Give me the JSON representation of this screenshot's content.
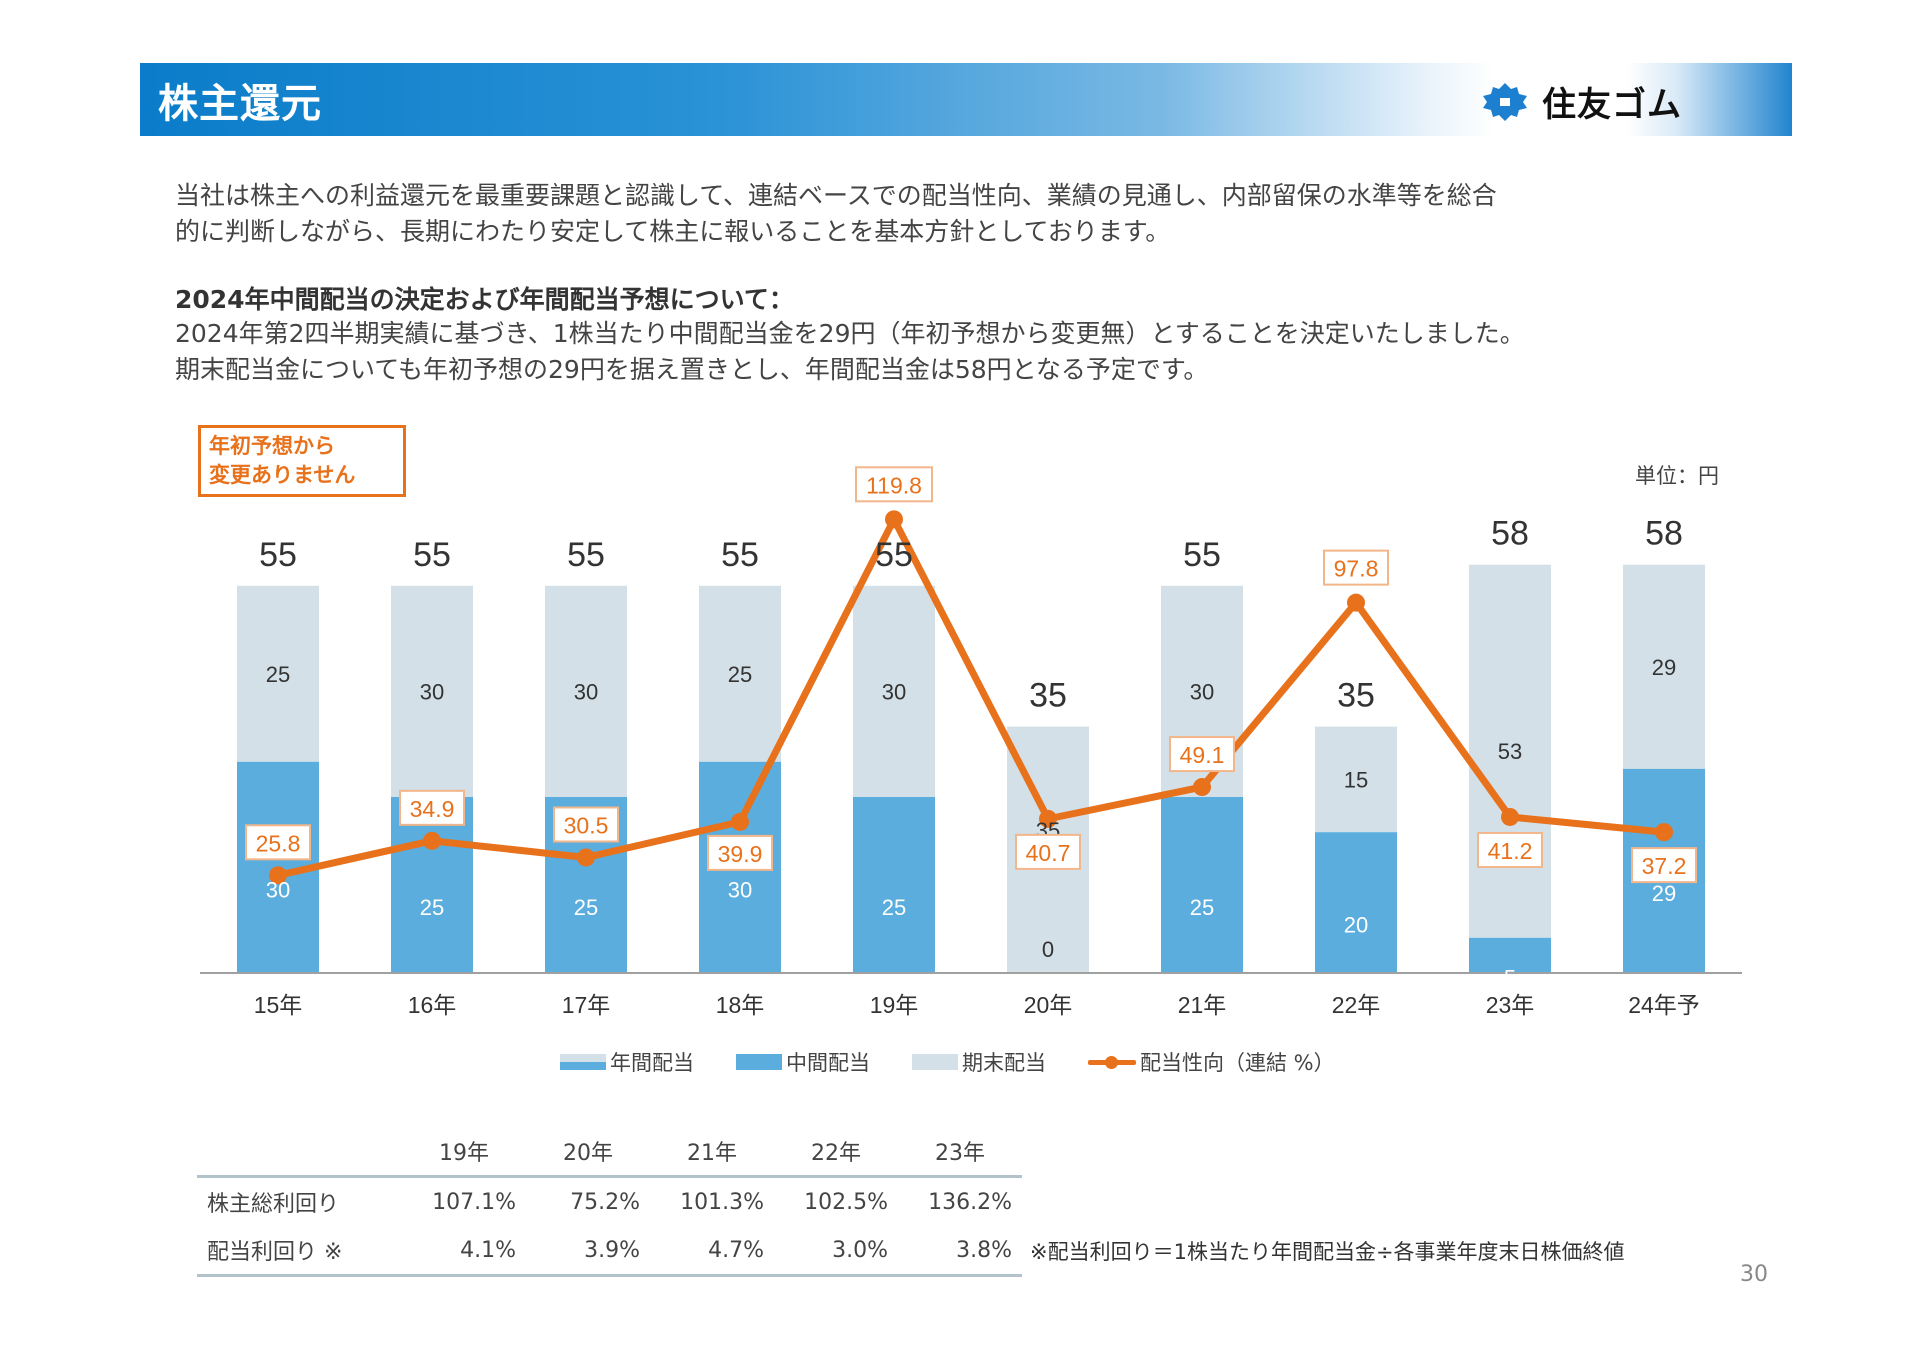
{
  "header": {
    "title": "株主還元",
    "logo_text": "住友ゴム",
    "logo_icon": "sumitomo-diamond-icon"
  },
  "intro": {
    "line1": "当社は株主への利益還元を最重要課題と認識して、連結ベースでの配当性向、業績の見通し、内部留保の水準等を総合",
    "line2": "的に判断しながら、長期にわたり安定して株主に報いることを基本方針としております。"
  },
  "announcement": {
    "heading": "2024年中間配当の決定および年間配当予想について：",
    "line1": "2024年第2四半期実績に基づき、1株当たり中間配当金を29円（年初予想から変更無）とすることを決定いたしました。",
    "line2": "期末配当金についても年初予想の29円を据え置きとし、年間配当金は58円となる予定です。"
  },
  "note_box": {
    "line1": "年初予想から",
    "line2": "変更ありません"
  },
  "unit_label": "単位：円",
  "colors": {
    "interim": "#5aaddd",
    "yearend": "#d3e0e8",
    "payout_line": "#e8711c",
    "header_blue": "#0a7cc9"
  },
  "chart_data": {
    "type": "bar",
    "stacked": true,
    "categories": [
      "15年",
      "16年",
      "17年",
      "18年",
      "19年",
      "20年",
      "21年",
      "22年",
      "23年",
      "24年予"
    ],
    "series": [
      {
        "name": "中間配当",
        "values": [
          30,
          25,
          25,
          30,
          25,
          0,
          25,
          20,
          5,
          29
        ]
      },
      {
        "name": "期末配当",
        "values": [
          25,
          30,
          30,
          25,
          30,
          35,
          30,
          15,
          53,
          29
        ]
      }
    ],
    "totals": {
      "name": "年間配当",
      "values": [
        55,
        55,
        55,
        55,
        55,
        35,
        55,
        35,
        58,
        58
      ]
    },
    "line_series": {
      "name": "配当性向（連結 %）",
      "type": "line",
      "values": [
        25.8,
        34.9,
        30.5,
        39.9,
        119.8,
        40.7,
        49.1,
        97.8,
        41.2,
        37.2
      ]
    },
    "segment_labels": {
      "interim": [
        "30",
        "25",
        "25",
        "30",
        "",
        "0",
        "25",
        "20",
        "5",
        "29"
      ],
      "yearend": [
        "25",
        "30",
        "30",
        "25",
        "30",
        "35",
        "30",
        "15",
        "53",
        "29"
      ],
      "interim_19": "25"
    },
    "legend": [
      "年間配当",
      "中間配当",
      "期末配当",
      "配当性向（連結 %）"
    ],
    "legend_position": "bottom",
    "unit": "円",
    "ylim_bars": [
      0,
      58
    ],
    "grid": false
  },
  "yield_table": {
    "columns": [
      "",
      "19年",
      "20年",
      "21年",
      "22年",
      "23年"
    ],
    "rows": [
      {
        "label": "株主総利回り",
        "values": [
          "107.1%",
          "75.2%",
          "101.3%",
          "102.5%",
          "136.2%"
        ]
      },
      {
        "label": "配当利回り ※",
        "values": [
          "4.1%",
          "3.9%",
          "4.7%",
          "3.0%",
          "3.8%"
        ]
      }
    ]
  },
  "footnote": "※配当利回り＝1株当たり年間配当金÷各事業年度末日株価終値",
  "page_number": "30"
}
